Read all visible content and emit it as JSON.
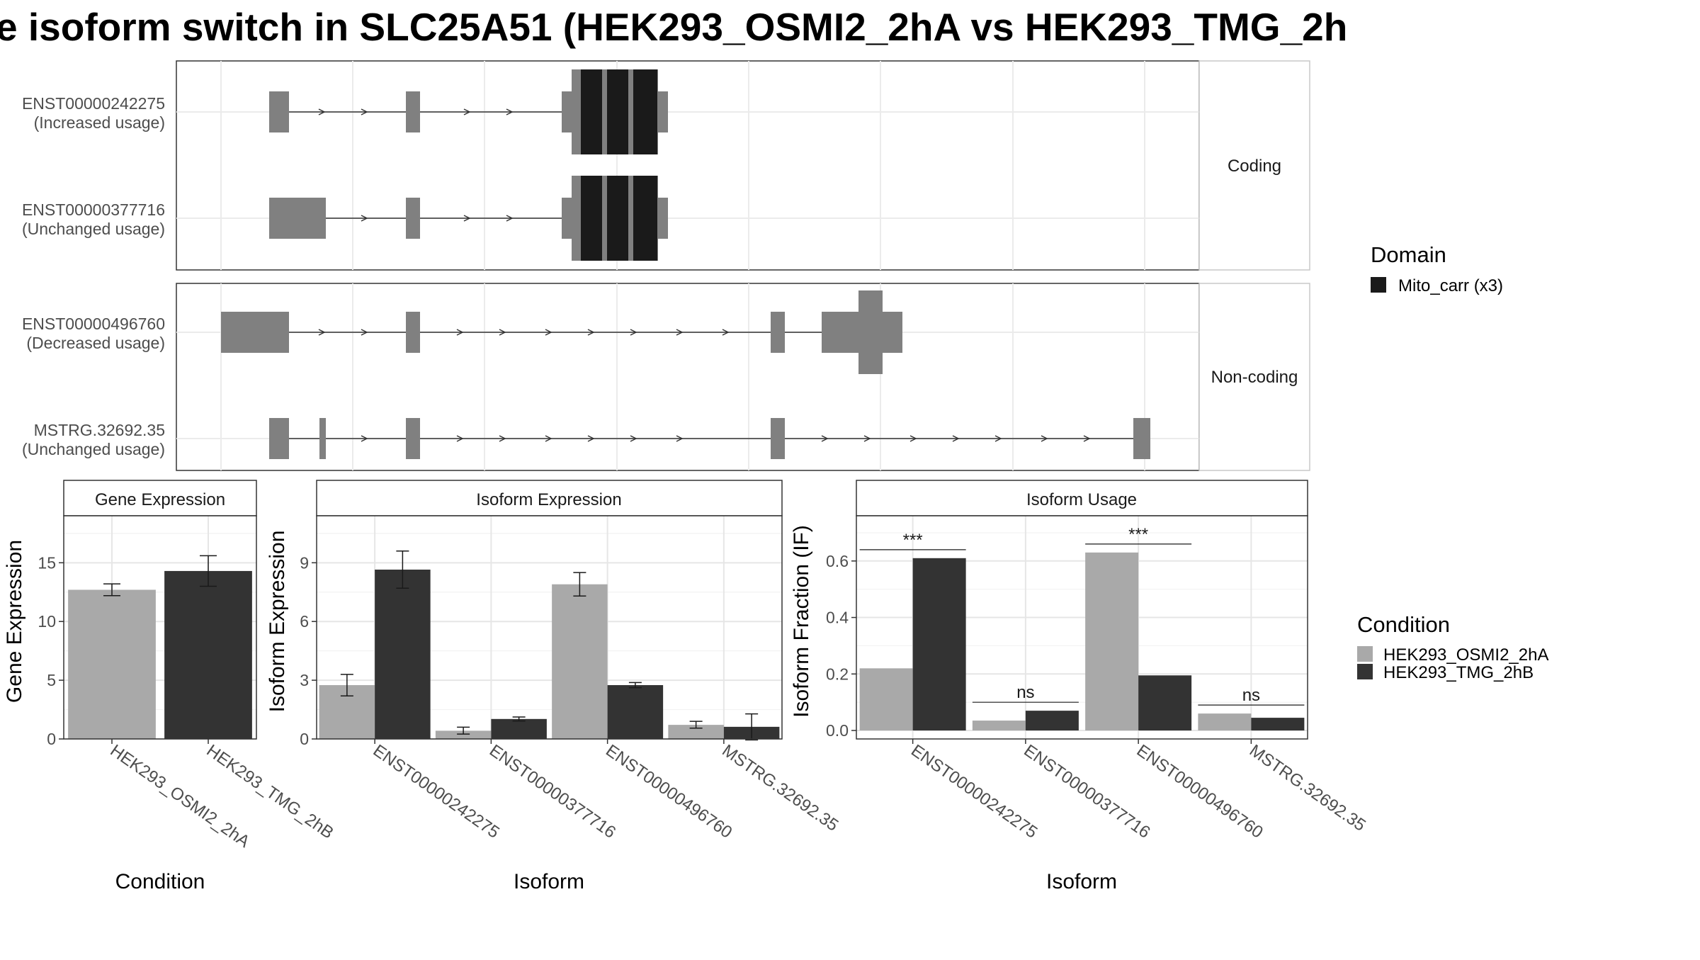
{
  "title": "e isoform switch in SLC25A51 (HEK293_OSMI2_2hA vs HEK293_TMG_2h",
  "structure": {
    "facets": [
      "Coding",
      "Non-coding"
    ],
    "isoforms": [
      {
        "id": "ENST00000242275",
        "note": "(Increased usage)",
        "facet": 0
      },
      {
        "id": "ENST00000377716",
        "note": "(Unchanged usage)",
        "facet": 0
      },
      {
        "id": "ENST00000496760",
        "note": "(Decreased usage)",
        "facet": 1
      },
      {
        "id": "MSTRG.32692.35",
        "note": "(Unchanged usage)",
        "facet": 1
      }
    ]
  },
  "legend_domain": {
    "title": "Domain",
    "items": [
      {
        "label": "Mito_carr (x3)",
        "color": "#1a1a1a"
      }
    ]
  },
  "legend_condition": {
    "title": "Condition",
    "items": [
      {
        "label": "HEK293_OSMI2_2hA",
        "color": "#a9a9a9"
      },
      {
        "label": "HEK293_TMG_2hB",
        "color": "#333333"
      }
    ]
  },
  "chart_data": [
    {
      "type": "bar",
      "title": "Gene Expression",
      "xlabel": "Condition",
      "ylabel": "Gene Expression",
      "ylim": [
        0,
        19
      ],
      "yticks": [
        0,
        5,
        10,
        15
      ],
      "categories": [
        "HEK293_OSMI2_2hA",
        "HEK293_TMG_2hB"
      ],
      "values": [
        12.7,
        14.3
      ],
      "errors": [
        [
          12.2,
          13.2
        ],
        [
          13.0,
          15.6
        ]
      ],
      "colors": [
        "#a9a9a9",
        "#333333"
      ]
    },
    {
      "type": "bar",
      "title": "Isoform Expression",
      "xlabel": "Isoform",
      "ylabel": "Isoform Expression",
      "ylim": [
        0,
        11.4
      ],
      "yticks": [
        0,
        3,
        6,
        9
      ],
      "categories": [
        "ENST00000242275",
        "ENST00000377716",
        "ENST00000496760",
        "MSTRG.32692.35"
      ],
      "series": [
        {
          "name": "HEK293_OSMI2_2hA",
          "values": [
            2.75,
            0.42,
            7.9,
            0.72
          ],
          "errors": [
            [
              2.2,
              3.3
            ],
            [
              0.25,
              0.6
            ],
            [
              7.3,
              8.5
            ],
            [
              0.55,
              0.9
            ]
          ]
        },
        {
          "name": "HEK293_TMG_2hB",
          "values": [
            8.65,
            1.02,
            2.75,
            0.62
          ],
          "errors": [
            [
              7.7,
              9.6
            ],
            [
              0.92,
              1.12
            ],
            [
              2.62,
              2.88
            ],
            [
              -0.05,
              1.28
            ]
          ]
        }
      ]
    },
    {
      "type": "bar",
      "title": "Isoform Usage",
      "xlabel": "Isoform",
      "ylabel": "Isoform Fraction (IF)",
      "ylim": [
        -0.03,
        0.76
      ],
      "yticks": [
        0.0,
        0.2,
        0.4,
        0.6
      ],
      "ytick_labels": [
        "0.0",
        "0.2",
        "0.4",
        "0.6"
      ],
      "categories": [
        "ENST00000242275",
        "ENST00000377716",
        "ENST00000496760",
        "MSTRG.32692.35"
      ],
      "series": [
        {
          "name": "HEK293_OSMI2_2hA",
          "values": [
            0.22,
            0.035,
            0.63,
            0.06
          ]
        },
        {
          "name": "HEK293_TMG_2hB",
          "values": [
            0.61,
            0.07,
            0.195,
            0.045
          ]
        }
      ],
      "significance": [
        {
          "label": "***",
          "y": 0.64
        },
        {
          "label": "ns",
          "y": 0.1
        },
        {
          "label": "***",
          "y": 0.66
        },
        {
          "label": "ns",
          "y": 0.09
        }
      ]
    }
  ]
}
